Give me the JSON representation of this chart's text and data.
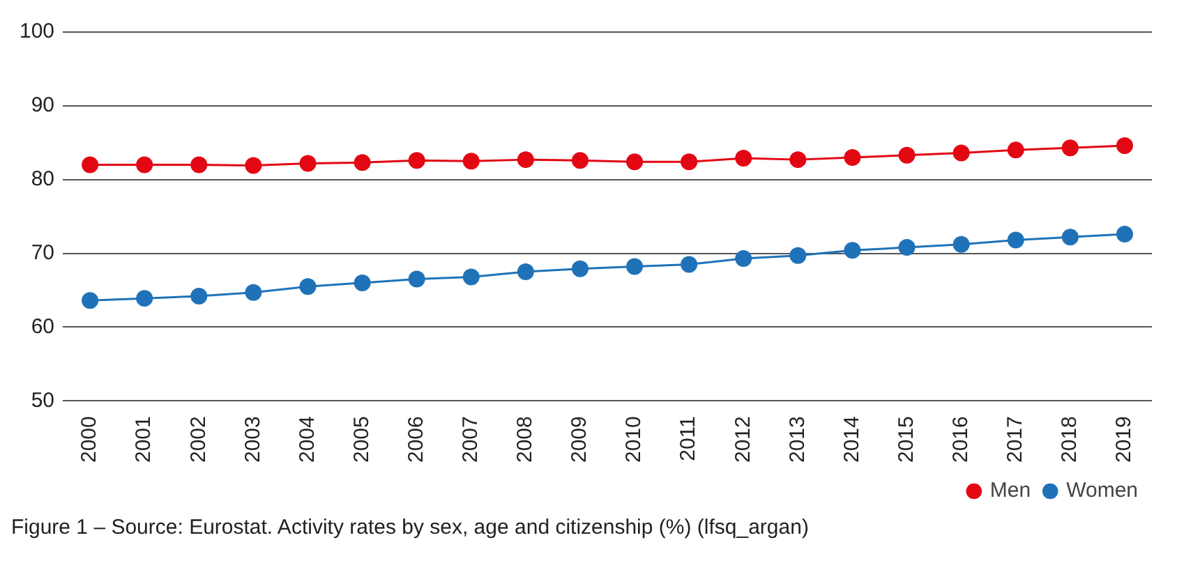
{
  "chart_data": {
    "type": "line",
    "categories": [
      "2000",
      "2001",
      "2002",
      "2003",
      "2004",
      "2005",
      "2006",
      "2007",
      "2008",
      "2009",
      "2010",
      "2011",
      "2012",
      "2013",
      "2014",
      "2015",
      "2016",
      "2017",
      "2018",
      "2019"
    ],
    "series": [
      {
        "name": "Men",
        "color": "#e30613",
        "values": [
          82.0,
          82.0,
          82.0,
          81.9,
          82.2,
          82.3,
          82.6,
          82.5,
          82.7,
          82.6,
          82.4,
          82.4,
          82.9,
          82.7,
          83.0,
          83.3,
          83.6,
          84.0,
          84.3,
          84.6
        ]
      },
      {
        "name": "Women",
        "color": "#1f72b8",
        "values": [
          63.6,
          63.9,
          64.2,
          64.7,
          65.5,
          66.0,
          66.5,
          66.8,
          67.5,
          67.9,
          68.2,
          68.5,
          69.3,
          69.7,
          70.4,
          70.8,
          71.2,
          71.8,
          72.2,
          72.6
        ]
      }
    ],
    "ylim": [
      50,
      100
    ],
    "yticks": [
      50,
      60,
      70,
      80,
      90,
      100
    ],
    "grid": "y",
    "legend": "bottom right",
    "marker": "circle",
    "line_style": "solid",
    "annotations": [
      "Figure 1 – Source: Eurostat. Activity rates by sex, age and citizenship (%) (lfsq_argan)"
    ]
  }
}
